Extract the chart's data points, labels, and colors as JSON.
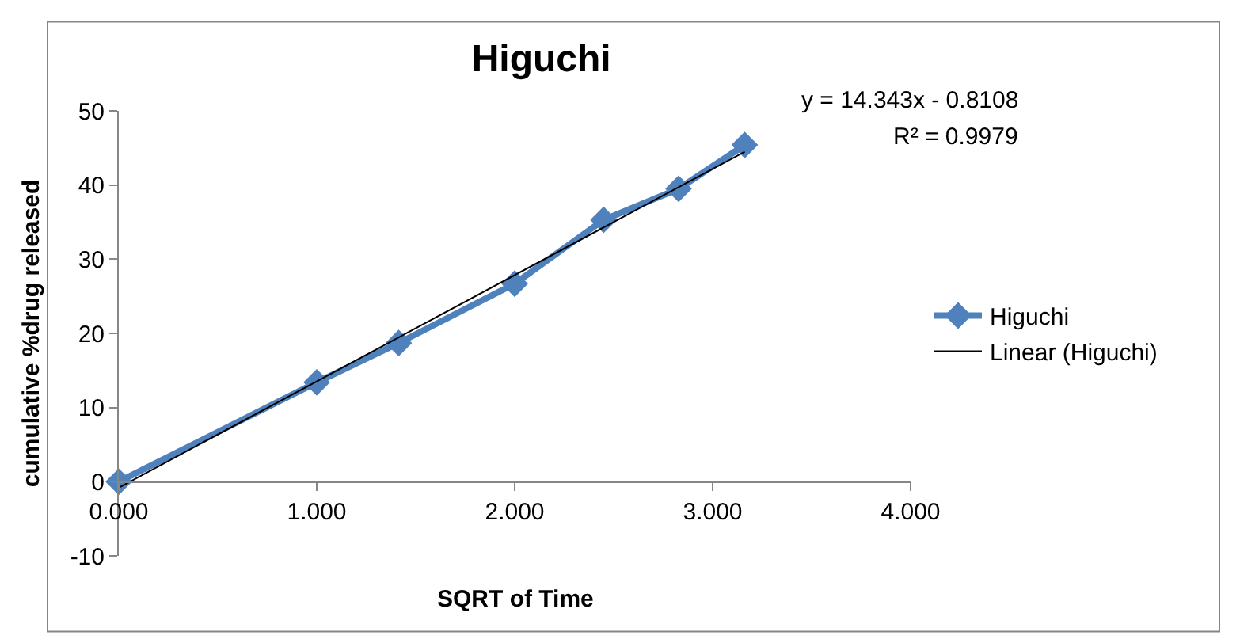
{
  "chart_data": {
    "type": "line",
    "title": "Higuchi",
    "xlabel": "SQRT of Time",
    "ylabel": "cumulative %drug released",
    "x": [
      0,
      1,
      1.414,
      2,
      2.449,
      2.828,
      3.162
    ],
    "series": [
      {
        "name": "Higuchi",
        "color": "#4f81bd",
        "values": [
          0,
          13.4,
          18.7,
          26.7,
          35.3,
          39.5,
          45.4
        ],
        "marker": "diamond"
      },
      {
        "name": "Linear (Higuchi)",
        "type": "line",
        "color": "#000000",
        "x": [
          0,
          3.162
        ],
        "values": [
          -0.8,
          44.5
        ],
        "marker": "none"
      }
    ],
    "xlim": [
      0,
      4
    ],
    "xticks": [
      {
        "value": 0,
        "label": "0.000"
      },
      {
        "value": 1,
        "label": "1.000"
      },
      {
        "value": 2,
        "label": "2.000"
      },
      {
        "value": 3,
        "label": "3.000"
      },
      {
        "value": 4,
        "label": "4.000"
      }
    ],
    "ylim": [
      -10,
      50
    ],
    "yticks": [
      -10,
      0,
      10,
      20,
      30,
      40,
      50
    ],
    "annotations": [
      "y = 14.343x - 0.8108",
      "R² = 0.9979"
    ],
    "legend": "right"
  }
}
